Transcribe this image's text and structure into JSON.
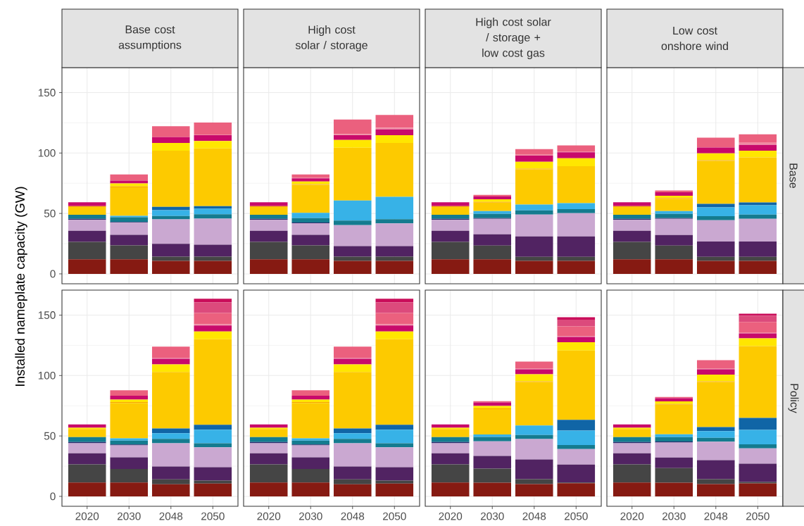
{
  "chart_data": [
    {
      "type": "bar",
      "stacked": true,
      "title": "Base cost assumptions",
      "ylabel": "Installed nameplate capacity (GW)",
      "categories": [
        "2020",
        "2030",
        "2048",
        "2050"
      ],
      "ylim": [
        -8.2,
        170.7
      ],
      "yticks": [
        0,
        50,
        100,
        150
      ],
      "grid": true,
      "tick_labels": "y",
      "series": [
        {
          "color": "#861a12",
          "values": [
            12,
            12,
            10.8,
            10.8
          ]
        },
        {
          "color": "#454545",
          "values": [
            14.5,
            11.6,
            3.4,
            3.4
          ]
        },
        {
          "color": "#512362",
          "values": [
            9.2,
            8.7,
            10.6,
            10
          ]
        },
        {
          "color": "#caa8d1",
          "values": [
            9,
            10,
            20.3,
            21.5
          ]
        },
        {
          "color": "#2b2b6e",
          "values": [
            0.8,
            0.6,
            0,
            0
          ]
        },
        {
          "color": "#147b8f",
          "values": [
            3.4,
            4,
            2.8,
            3.6
          ]
        },
        {
          "color": "#37b2e7",
          "values": [
            0,
            1.2,
            4.8,
            4.6
          ]
        },
        {
          "color": "#1065a6",
          "values": [
            0,
            0,
            2.8,
            2.2
          ]
        },
        {
          "color": "#fdca00",
          "values": [
            6.4,
            23.6,
            46.5,
            47.7
          ]
        },
        {
          "color": "#f7a600",
          "values": [
            0.8,
            0.6,
            0,
            0
          ]
        },
        {
          "color": "#ffe600",
          "values": [
            0,
            2.6,
            6.4,
            6.2
          ]
        },
        {
          "color": "#c80a6b",
          "values": [
            3.2,
            2.3,
            4.8,
            4.8
          ]
        },
        {
          "color": "#f08ca3",
          "values": [
            0,
            0,
            0,
            0.6
          ]
        },
        {
          "color": "#eb607e",
          "values": [
            0,
            5,
            9,
            9.8
          ]
        }
      ]
    },
    {
      "type": "bar",
      "stacked": true,
      "title": "High cost solar / storage",
      "categories": [
        "2020",
        "2030",
        "2048",
        "2050"
      ],
      "ylim": [
        -8.2,
        170.7
      ],
      "yticks": [
        0,
        50,
        100,
        150
      ],
      "grid": true,
      "tick_labels": false,
      "series": [
        {
          "color": "#861a12",
          "values": [
            12,
            12,
            10.8,
            10.8
          ]
        },
        {
          "color": "#454545",
          "values": [
            14.5,
            11.6,
            3.4,
            3.4
          ]
        },
        {
          "color": "#512362",
          "values": [
            9.2,
            8.7,
            8.8,
            8.8
          ]
        },
        {
          "color": "#caa8d1",
          "values": [
            9,
            9.6,
            17.3,
            18.7
          ]
        },
        {
          "color": "#2b2b6e",
          "values": [
            0.8,
            0.6,
            0,
            0
          ]
        },
        {
          "color": "#147b8f",
          "values": [
            3.4,
            3.6,
            3.8,
            3.6
          ]
        },
        {
          "color": "#37b2e7",
          "values": [
            0,
            4.4,
            16.6,
            18.4
          ]
        },
        {
          "color": "#fdca00",
          "values": [
            6.4,
            23.2,
            43.7,
            44.7
          ]
        },
        {
          "color": "#f7a600",
          "values": [
            0.8,
            0.6,
            0,
            0
          ]
        },
        {
          "color": "#ffe600",
          "values": [
            0,
            2.1,
            6.4,
            6.4
          ]
        },
        {
          "color": "#c80a6b",
          "values": [
            3.2,
            2.6,
            4,
            4.8
          ]
        },
        {
          "color": "#f08ca3",
          "values": [
            0,
            0.8,
            0.8,
            1.4
          ]
        },
        {
          "color": "#eb607e",
          "values": [
            0,
            2.4,
            12.1,
            10.5
          ]
        }
      ]
    },
    {
      "type": "bar",
      "stacked": true,
      "title": "High cost solar / storage + low cost gas",
      "categories": [
        "2020",
        "2030",
        "2048",
        "2050"
      ],
      "ylim": [
        -8.2,
        170.7
      ],
      "yticks": [
        0,
        50,
        100,
        150
      ],
      "grid": true,
      "tick_labels": false,
      "series": [
        {
          "color": "#861a12",
          "values": [
            12,
            12,
            10.7,
            10.7
          ]
        },
        {
          "color": "#454545",
          "values": [
            14.5,
            11.4,
            3.4,
            3.4
          ]
        },
        {
          "color": "#512362",
          "values": [
            9.2,
            9.3,
            16.9,
            16.9
          ]
        },
        {
          "color": "#caa8d1",
          "values": [
            9,
            12.9,
            18,
            19.2
          ]
        },
        {
          "color": "#2b2b6e",
          "values": [
            0.8,
            0.6,
            0,
            0
          ]
        },
        {
          "color": "#147b8f",
          "values": [
            3.4,
            3.4,
            3.6,
            3.4
          ]
        },
        {
          "color": "#37b2e7",
          "values": [
            0,
            2.4,
            4.7,
            4.9
          ]
        },
        {
          "color": "#fdca00",
          "values": [
            6.4,
            6.9,
            29.2,
            30.6
          ]
        },
        {
          "color": "#f7a600",
          "values": [
            0.8,
            0.6,
            0.6,
            0
          ]
        },
        {
          "color": "#ffe600",
          "values": [
            0,
            2.2,
            5.6,
            6.5
          ]
        },
        {
          "color": "#c80a6b",
          "values": [
            3.2,
            2.4,
            5.1,
            5
          ]
        },
        {
          "color": "#f08ca3",
          "values": [
            0,
            0,
            0.8,
            0.8
          ]
        },
        {
          "color": "#eb607e",
          "values": [
            0,
            1.2,
            4.6,
            4.9
          ]
        }
      ]
    },
    {
      "type": "bar",
      "stacked": true,
      "title": "Low cost onshore wind",
      "y2label": "Base",
      "categories": [
        "2020",
        "2030",
        "2048",
        "2050"
      ],
      "ylim": [
        -8.2,
        170.7
      ],
      "yticks": [
        0,
        50,
        100,
        150
      ],
      "grid": true,
      "tick_labels": false,
      "series": [
        {
          "color": "#861a12",
          "values": [
            12,
            12,
            10.7,
            10.7
          ]
        },
        {
          "color": "#454545",
          "values": [
            14.5,
            11.4,
            3.4,
            3.4
          ]
        },
        {
          "color": "#512362",
          "values": [
            9.2,
            8.7,
            12.7,
            12.7
          ]
        },
        {
          "color": "#caa8d1",
          "values": [
            9,
            13.5,
            17.6,
            18.8
          ]
        },
        {
          "color": "#2b2b6e",
          "values": [
            0.8,
            0.6,
            0,
            0
          ]
        },
        {
          "color": "#147b8f",
          "values": [
            3.4,
            3.4,
            3.4,
            3.4
          ]
        },
        {
          "color": "#37b2e7",
          "values": [
            0,
            2.4,
            7.2,
            7.7
          ]
        },
        {
          "color": "#1065a6",
          "values": [
            0,
            0,
            2.9,
            2.4
          ]
        },
        {
          "color": "#fdca00",
          "values": [
            6.4,
            10.1,
            35.6,
            37.3
          ]
        },
        {
          "color": "#f7a600",
          "values": [
            0.8,
            0.6,
            0.6,
            0
          ]
        },
        {
          "color": "#ffe600",
          "values": [
            0,
            2,
            5.7,
            5.6
          ]
        },
        {
          "color": "#c80a6b",
          "values": [
            3.2,
            2.8,
            4.8,
            4.7
          ]
        },
        {
          "color": "#f08ca3",
          "values": [
            0,
            0,
            0,
            1.8
          ]
        },
        {
          "color": "#eb607e",
          "values": [
            0,
            1.5,
            8.1,
            7
          ]
        }
      ]
    },
    {
      "type": "bar",
      "stacked": true,
      "categories": [
        "2020",
        "2030",
        "2048",
        "2050"
      ],
      "ylim": [
        -8.2,
        170.7
      ],
      "yticks": [
        0,
        50,
        100,
        150
      ],
      "grid": true,
      "series": [
        {
          "color": "#861a12",
          "values": [
            11.4,
            11.4,
            10,
            10.6
          ]
        },
        {
          "color": "#454545",
          "values": [
            15.1,
            11.3,
            4.1,
            2.5
          ]
        },
        {
          "color": "#512362",
          "values": [
            9.2,
            9.6,
            10.6,
            11
          ]
        },
        {
          "color": "#caa8d1",
          "values": [
            8.3,
            9.9,
            19.3,
            16.5
          ]
        },
        {
          "color": "#2b2b6e",
          "values": [
            1,
            0.8,
            0,
            0
          ]
        },
        {
          "color": "#147b8f",
          "values": [
            4,
            3.2,
            3.6,
            3.4
          ]
        },
        {
          "color": "#37b2e7",
          "values": [
            0,
            1.8,
            4.6,
            11.2
          ]
        },
        {
          "color": "#1065a6",
          "values": [
            0,
            0,
            4,
            4
          ]
        },
        {
          "color": "#fdca00",
          "values": [
            6.8,
            29.3,
            46.8,
            70.9
          ]
        },
        {
          "color": "#f7a600",
          "values": [
            0,
            0.8,
            0,
            0
          ]
        },
        {
          "color": "#ffe600",
          "values": [
            1,
            2,
            6.2,
            6.4
          ]
        },
        {
          "color": "#c80a6b",
          "values": [
            2.8,
            3.2,
            4.7,
            4.9
          ]
        },
        {
          "color": "#f08ca3",
          "values": [
            0,
            0,
            0.8,
            1
          ]
        },
        {
          "color": "#eb607e",
          "values": [
            0,
            4.5,
            9.2,
            9.4
          ]
        },
        {
          "color": "#dc4a7c",
          "values": [
            0,
            0,
            0,
            8.8
          ]
        },
        {
          "color": "#c90d5a",
          "values": [
            0,
            0,
            0,
            2.9
          ]
        }
      ]
    },
    {
      "type": "bar",
      "stacked": true,
      "categories": [
        "2020",
        "2030",
        "2048",
        "2050"
      ],
      "ylim": [
        -8.2,
        170.7
      ],
      "yticks": [
        0,
        50,
        100,
        150
      ],
      "grid": true,
      "tick_labels": "x",
      "series": [
        {
          "color": "#861a12",
          "values": [
            11.4,
            11.4,
            10,
            10.6
          ]
        },
        {
          "color": "#454545",
          "values": [
            15.1,
            11.3,
            4.1,
            2.5
          ]
        },
        {
          "color": "#512362",
          "values": [
            9.2,
            9.6,
            10.6,
            11
          ]
        },
        {
          "color": "#caa8d1",
          "values": [
            8.3,
            9.9,
            19.3,
            16.5
          ]
        },
        {
          "color": "#2b2b6e",
          "values": [
            1,
            0.8,
            0,
            0
          ]
        },
        {
          "color": "#147b8f",
          "values": [
            4,
            3.2,
            3.6,
            3.4
          ]
        },
        {
          "color": "#37b2e7",
          "values": [
            0,
            1.8,
            4.6,
            11.2
          ]
        },
        {
          "color": "#1065a6",
          "values": [
            0,
            0,
            4,
            4
          ]
        },
        {
          "color": "#fdca00",
          "values": [
            6.8,
            29.3,
            46.8,
            70.9
          ]
        },
        {
          "color": "#f7a600",
          "values": [
            0,
            0.8,
            0,
            0
          ]
        },
        {
          "color": "#ffe600",
          "values": [
            1,
            2,
            6.2,
            6.4
          ]
        },
        {
          "color": "#c80a6b",
          "values": [
            2.8,
            3.2,
            4.7,
            4.9
          ]
        },
        {
          "color": "#f08ca3",
          "values": [
            0,
            0,
            0.8,
            1
          ]
        },
        {
          "color": "#eb607e",
          "values": [
            0,
            4.5,
            9.2,
            9.4
          ]
        },
        {
          "color": "#dc4a7c",
          "values": [
            0,
            0,
            0,
            8.8
          ]
        },
        {
          "color": "#c90d5a",
          "values": [
            0,
            0,
            0,
            2.9
          ]
        }
      ]
    },
    {
      "type": "bar",
      "stacked": true,
      "categories": [
        "2020",
        "2030",
        "2048",
        "2050"
      ],
      "ylim": [
        -8.2,
        170.7
      ],
      "yticks": [
        0,
        50,
        100,
        150
      ],
      "grid": true,
      "tick_labels": "x",
      "series": [
        {
          "color": "#861a12",
          "values": [
            11.4,
            11.3,
            10.1,
            10.9
          ]
        },
        {
          "color": "#454545",
          "values": [
            15.1,
            11.7,
            4.2,
            0.6
          ]
        },
        {
          "color": "#512362",
          "values": [
            9.2,
            10.5,
            16.3,
            14.9
          ]
        },
        {
          "color": "#caa8d1",
          "values": [
            8.3,
            12.1,
            16.8,
            12.7
          ]
        },
        {
          "color": "#2b2b6e",
          "values": [
            1,
            0,
            0,
            0
          ]
        },
        {
          "color": "#147b8f",
          "values": [
            4,
            3.6,
            3.4,
            3.4
          ]
        },
        {
          "color": "#37b2e7",
          "values": [
            0,
            2,
            7.9,
            11.9
          ]
        },
        {
          "color": "#1065a6",
          "values": [
            0,
            0,
            0,
            8.9
          ]
        },
        {
          "color": "#fdca00",
          "values": [
            6.8,
            21,
            35.9,
            57.5
          ]
        },
        {
          "color": "#f7a600",
          "values": [
            0,
            0.6,
            0.6,
            0
          ]
        },
        {
          "color": "#ffe600",
          "values": [
            1,
            2,
            5.8,
            6.8
          ]
        },
        {
          "color": "#c80a6b",
          "values": [
            2.8,
            3,
            4.2,
            4.4
          ]
        },
        {
          "color": "#f08ca3",
          "values": [
            0,
            0,
            0.8,
            0.8
          ]
        },
        {
          "color": "#eb607e",
          "values": [
            0,
            1,
            5.5,
            7.9
          ]
        },
        {
          "color": "#dc4a7c",
          "values": [
            0,
            0,
            0,
            5.5
          ]
        },
        {
          "color": "#c90d5a",
          "values": [
            0,
            0,
            0,
            2
          ]
        }
      ]
    },
    {
      "type": "bar",
      "stacked": true,
      "y2label": "Policy",
      "categories": [
        "2020",
        "2030",
        "2048",
        "2050"
      ],
      "ylim": [
        -8.2,
        170.7
      ],
      "yticks": [
        0,
        50,
        100,
        150
      ],
      "grid": true,
      "tick_labels": "x",
      "series": [
        {
          "color": "#861a12",
          "values": [
            11.4,
            11.3,
            10.1,
            10.7
          ]
        },
        {
          "color": "#454545",
          "values": [
            15.1,
            12.1,
            4.2,
            1.2
          ]
        },
        {
          "color": "#512362",
          "values": [
            9.2,
            8.7,
            15.7,
            15.1
          ]
        },
        {
          "color": "#caa8d1",
          "values": [
            8.3,
            12.5,
            15.2,
            12.7
          ]
        },
        {
          "color": "#2b2b6e",
          "values": [
            1,
            0.8,
            0,
            0
          ]
        },
        {
          "color": "#147b8f",
          "values": [
            4,
            3.6,
            3.2,
            3.4
          ]
        },
        {
          "color": "#37b2e7",
          "values": [
            0,
            2.4,
            5.6,
            11.9
          ]
        },
        {
          "color": "#1065a6",
          "values": [
            0,
            0,
            3.3,
            9.9
          ]
        },
        {
          "color": "#fdca00",
          "values": [
            6.8,
            24.4,
            37.3,
            59.5
          ]
        },
        {
          "color": "#f7a600",
          "values": [
            0,
            0.6,
            0.6,
            0
          ]
        },
        {
          "color": "#ffe600",
          "values": [
            1,
            2.2,
            5.6,
            6.4
          ]
        },
        {
          "color": "#c80a6b",
          "values": [
            2.8,
            2.7,
            4.4,
            4.1
          ]
        },
        {
          "color": "#f08ca3",
          "values": [
            0,
            0,
            0.8,
            0.8
          ]
        },
        {
          "color": "#eb607e",
          "values": [
            0,
            1,
            6.7,
            8.7
          ]
        },
        {
          "color": "#dc4a7c",
          "values": [
            0,
            0,
            0,
            5.2
          ]
        },
        {
          "color": "#c90d5a",
          "values": [
            0,
            0,
            0,
            1.6
          ]
        }
      ]
    }
  ]
}
